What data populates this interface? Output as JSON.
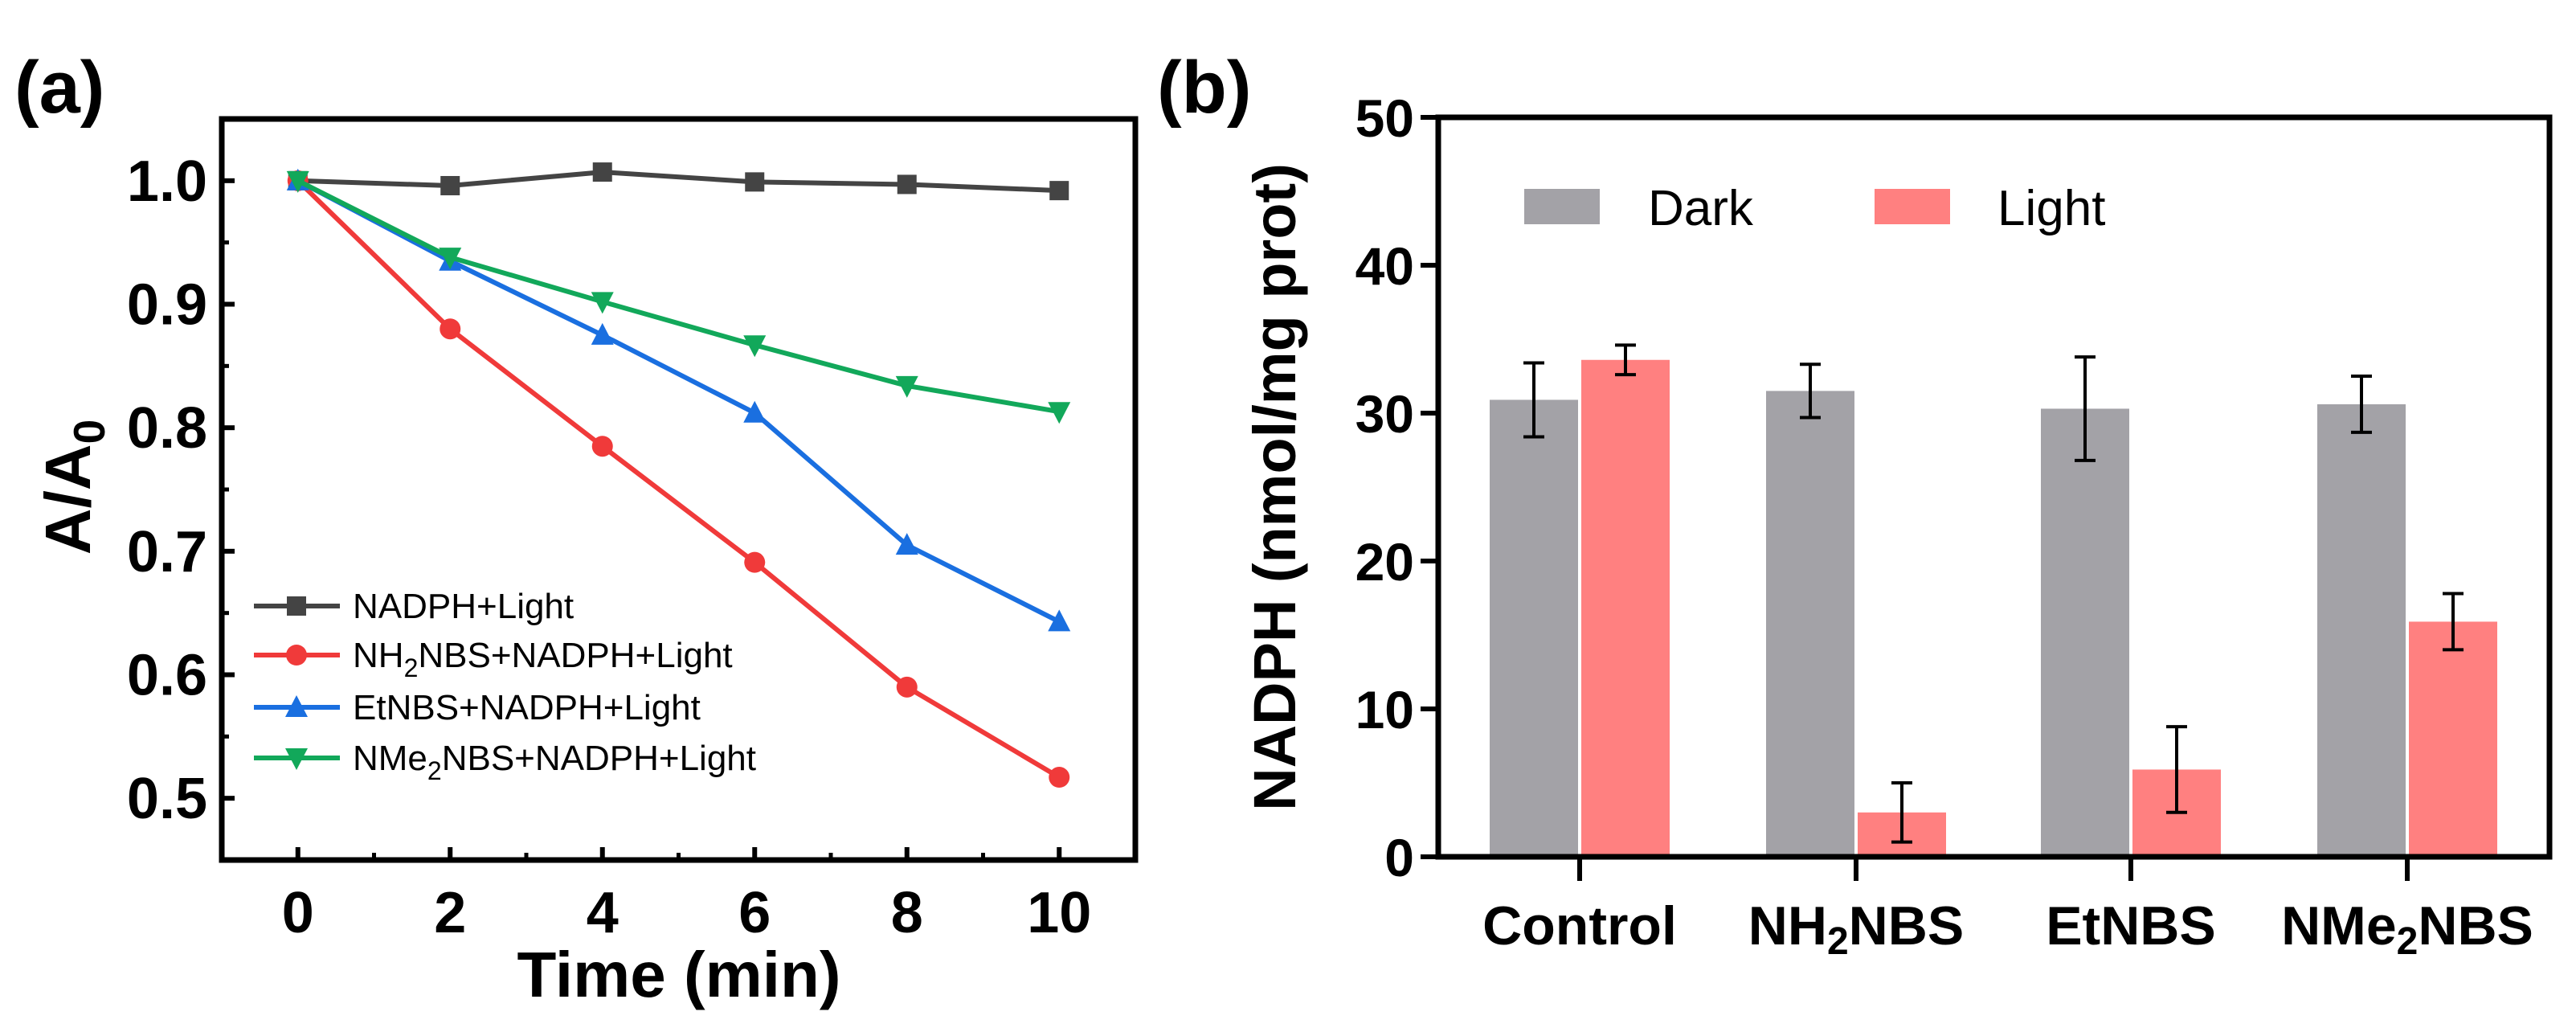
{
  "chart_data": [
    {
      "panel_label": "(a)",
      "type": "line",
      "xlabel": "Time (min)",
      "ylabel": {
        "main": "A/A",
        "sub": "0"
      },
      "xlim": [
        -1,
        11
      ],
      "ylim": [
        0.45,
        1.05
      ],
      "xticks": [
        0,
        2,
        4,
        6,
        8,
        10
      ],
      "yticks": [
        "0.5",
        "0.6",
        "0.7",
        "0.8",
        "0.9",
        "1.0"
      ],
      "x": [
        0,
        2,
        4,
        6,
        8,
        10
      ],
      "legend_position": "bottom-left",
      "series": [
        {
          "name": {
            "pre": "NADPH+Light",
            "sub": "",
            "post": ""
          },
          "color": "#444444",
          "marker": "square",
          "values": [
            1.0,
            0.996,
            1.007,
            0.999,
            0.997,
            0.992
          ]
        },
        {
          "name": {
            "pre": "NH",
            "sub": "2",
            "post": "NBS+NADPH+Light"
          },
          "color": "#f03a3a",
          "marker": "circle",
          "values": [
            1.0,
            0.88,
            0.785,
            0.691,
            0.59,
            0.517
          ]
        },
        {
          "name": {
            "pre": "EtNBS+NADPH+Light",
            "sub": "",
            "post": ""
          },
          "color": "#1a6fe0",
          "marker": "triangle-up",
          "values": [
            1.0,
            0.935,
            0.875,
            0.812,
            0.705,
            0.643
          ]
        },
        {
          "name": {
            "pre": "NMe",
            "sub": "2",
            "post": "NBS+NADPH+Light"
          },
          "color": "#12a85a",
          "marker": "triangle-down",
          "values": [
            1.0,
            0.938,
            0.902,
            0.867,
            0.834,
            0.813
          ]
        }
      ]
    },
    {
      "panel_label": "(b)",
      "type": "bar",
      "ylabel": "NADPH (nmol/mg prot)",
      "ylim": [
        0,
        50
      ],
      "yticks": [
        "0",
        "10",
        "20",
        "30",
        "40",
        "50"
      ],
      "categories": [
        {
          "pre": "Control",
          "sub": "",
          "post": ""
        },
        {
          "pre": "NH",
          "sub": "2",
          "post": "NBS"
        },
        {
          "pre": "EtNBS",
          "sub": "",
          "post": ""
        },
        {
          "pre": "NMe",
          "sub": "2",
          "post": "NBS"
        }
      ],
      "legend_position": "top-left",
      "series": [
        {
          "name": "Dark",
          "color": "#a3a2a7",
          "values": [
            30.9,
            31.5,
            30.3,
            30.6
          ],
          "errors": [
            2.5,
            1.8,
            3.5,
            1.9
          ]
        },
        {
          "name": "Light",
          "color": "#ff8080",
          "values": [
            33.6,
            3.0,
            5.9,
            15.9
          ],
          "errors": [
            1.0,
            2.0,
            2.9,
            1.9
          ]
        }
      ]
    }
  ]
}
